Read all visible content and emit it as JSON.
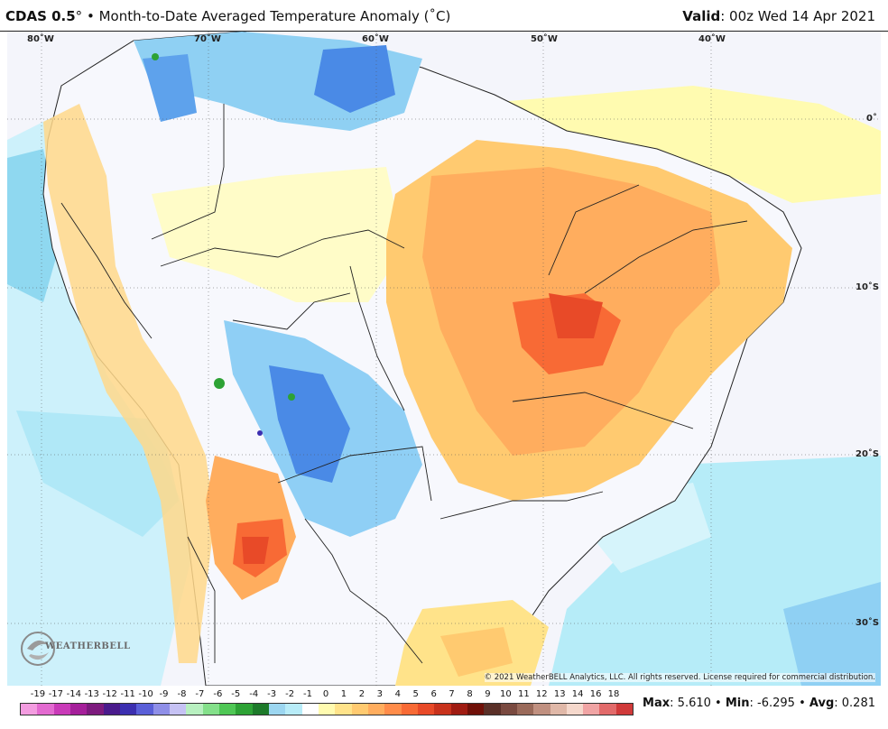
{
  "header": {
    "model": "CDAS 0.5",
    "degree": "°",
    "bullet": "•",
    "title": "Month-to-Date Averaged Temperature Anomaly (˚C)",
    "valid_label": "Valid",
    "valid_value": ": 00z Wed 14 Apr 2021"
  },
  "map": {
    "lon_labels": [
      "80˚W",
      "70˚W",
      "60˚W",
      "50˚W",
      "40˚W"
    ],
    "lat_labels": [
      "0˚",
      "10˚S",
      "20˚S",
      "30˚S"
    ],
    "copyright": "© 2021 WeatherBELL Analytics, LLC. All rights reserved. License required for commercial distribution.",
    "logo_text": "WEATHERBELL",
    "logo_icon": "swirl-logo-icon"
  },
  "legend": {
    "labels": [
      "-19",
      "-17",
      "-14",
      "-13",
      "-12",
      "-11",
      "-10",
      "-9",
      "-8",
      "-7",
      "-6",
      "-5",
      "-4",
      "-3",
      "-2",
      "-1",
      "0",
      "1",
      "2",
      "3",
      "4",
      "5",
      "6",
      "7",
      "8",
      "9",
      "10",
      "11",
      "12",
      "13",
      "14",
      "16",
      "18"
    ],
    "colors": [
      "#f39ce0",
      "#e36ad0",
      "#c93ab8",
      "#a51f9a",
      "#7d1a7e",
      "#4a1a8c",
      "#3c2fb0",
      "#5a5fd8",
      "#8f8fe8",
      "#c6c2f4",
      "#b8f0c0",
      "#84e08a",
      "#4fc755",
      "#2da235",
      "#1d7a2a",
      "#9cd6f0",
      "#b8ecf8",
      "#ffffff",
      "#fffbb0",
      "#ffe38a",
      "#ffca70",
      "#ffad5e",
      "#ff8c4a",
      "#f86a35",
      "#e84a28",
      "#c8321c",
      "#a01c12",
      "#701008",
      "#5a3028",
      "#7a4a40",
      "#9a6a5a",
      "#c09080",
      "#e0b8a8",
      "#f5d8cc",
      "#f0a4a4",
      "#e26a6a",
      "#d03a3a"
    ],
    "accent_negative": "#4a8ae6",
    "accent_positive": "#f08a3c"
  },
  "stats": {
    "max_label": "Max",
    "max_value": ": 5.610",
    "sep": "•",
    "min_label": "Min",
    "min_value": ": -6.295",
    "avg_label": "Avg",
    "avg_value": ": 0.281"
  }
}
